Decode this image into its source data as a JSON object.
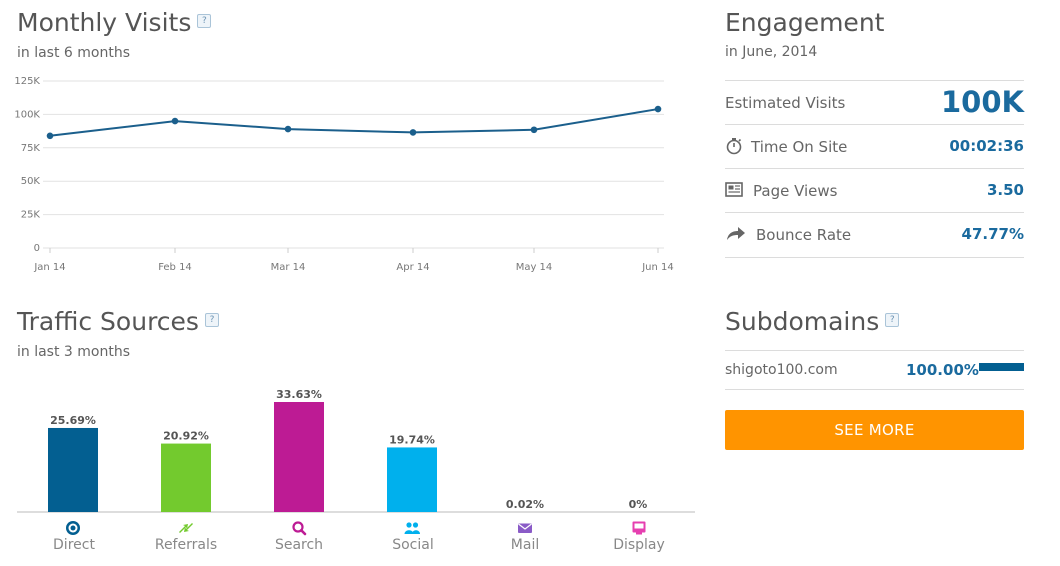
{
  "monthly_visits": {
    "title": "Monthly Visits",
    "help": "?",
    "subtitle": "in last 6 months"
  },
  "traffic_sources": {
    "title": "Traffic Sources",
    "help": "?",
    "subtitle": "in last 3 months"
  },
  "engagement": {
    "title": "Engagement",
    "subtitle": "in June, 2014",
    "rows": [
      {
        "label": "Estimated Visits",
        "value": "100K",
        "icon": "none"
      },
      {
        "label": "Time On Site",
        "value": "00:02:36",
        "icon": "stopwatch-icon"
      },
      {
        "label": "Page Views",
        "value": "3.50",
        "icon": "pages-icon"
      },
      {
        "label": "Bounce Rate",
        "value": "47.77%",
        "icon": "bounce-arrow-icon"
      }
    ]
  },
  "subdomains": {
    "title": "Subdomains",
    "help": "?",
    "items": [
      {
        "name": "shigoto100.com",
        "value": "100.00%",
        "share": 1.0
      }
    ],
    "see_more_label": "SEE MORE"
  },
  "colors": {
    "line": "#1b5f8c",
    "direct": "#035f91",
    "referrals": "#73ca2e",
    "search": "#bd1b94",
    "social": "#00b0ed",
    "mail": "#8a5bc7",
    "display": "#e63fb0",
    "accent_blue": "#1a6a9e",
    "button": "#ff9400"
  },
  "chart_data": [
    {
      "type": "line",
      "x": [
        "Jan 14",
        "Feb 14",
        "Mar 14",
        "Apr 14",
        "May 14",
        "Jun 14"
      ],
      "series": [
        {
          "values": [
            84000,
            95000,
            89000,
            86500,
            88500,
            104000
          ]
        }
      ],
      "yticks": [
        "0",
        "25K",
        "50K",
        "75K",
        "100K",
        "125K"
      ],
      "ylim": [
        0,
        125000
      ],
      "grid": true
    },
    {
      "type": "bar",
      "categories": [
        "Direct",
        "Referrals",
        "Search",
        "Social",
        "Mail",
        "Display"
      ],
      "values": [
        25.69,
        20.92,
        33.63,
        19.74,
        0.02,
        0
      ],
      "labels": [
        "25.69%",
        "20.92%",
        "33.63%",
        "19.74%",
        "0.02%",
        "0%"
      ],
      "ylim": [
        0,
        33.63
      ]
    }
  ]
}
